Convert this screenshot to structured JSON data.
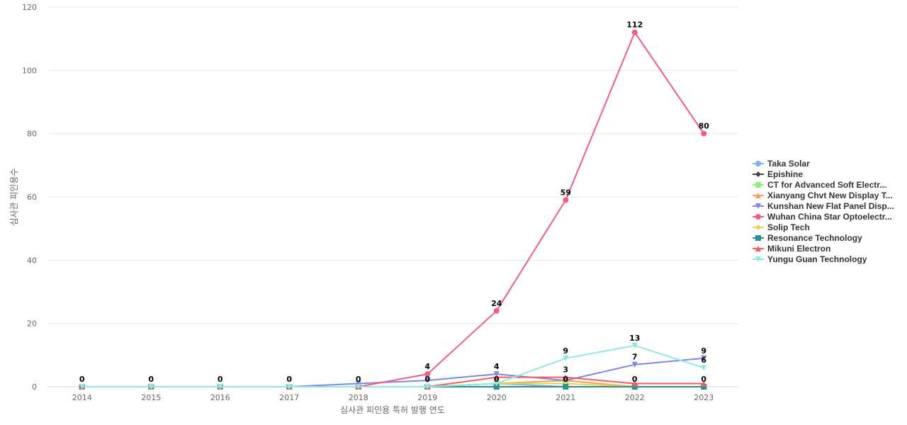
{
  "chart_data": {
    "type": "line",
    "title": "",
    "xlabel": "심사관 피인용 특허 발행 연도",
    "ylabel": "심사관 피인용수",
    "categories": [
      "2014",
      "2015",
      "2016",
      "2017",
      "2018",
      "2019",
      "2020",
      "2021",
      "2022",
      "2023"
    ],
    "ylim": [
      0,
      120
    ],
    "yticks": [
      0,
      20,
      40,
      60,
      80,
      100,
      120
    ],
    "grid": true,
    "legend_position": "right",
    "series": [
      {
        "name": "Taka Solar",
        "color": "#7cb5ec",
        "marker": "circle",
        "values": [
          0,
          0,
          0,
          0,
          0,
          0,
          1,
          0,
          0,
          0
        ],
        "labels": [
          null,
          null,
          null,
          null,
          null,
          null,
          null,
          null,
          null,
          null
        ]
      },
      {
        "name": "Epishine",
        "color": "#434348",
        "marker": "diamond",
        "values": [
          0,
          0,
          0,
          0,
          0,
          0,
          0,
          0,
          0,
          0
        ],
        "labels": [
          null,
          null,
          null,
          null,
          null,
          null,
          null,
          null,
          null,
          null
        ]
      },
      {
        "name": "CT for Advanced Soft Electr...",
        "color": "#90ed7d",
        "marker": "square",
        "values": [
          0,
          0,
          0,
          0,
          0,
          0,
          1,
          2,
          0,
          0
        ],
        "labels": [
          null,
          null,
          null,
          null,
          null,
          null,
          null,
          null,
          null,
          null
        ]
      },
      {
        "name": "Xianyang Chvt New Display T...",
        "color": "#f7a35c",
        "marker": "triangle",
        "values": [
          0,
          0,
          0,
          0,
          0,
          0,
          1,
          2,
          0,
          0
        ],
        "labels": [
          null,
          null,
          null,
          null,
          null,
          null,
          null,
          null,
          null,
          null
        ]
      },
      {
        "name": "Kunshan New Flat Panel Disp...",
        "color": "#8085e9",
        "marker": "triangle-down",
        "values": [
          0,
          0,
          0,
          0,
          1,
          2,
          4,
          2,
          7,
          9
        ],
        "labels": [
          null,
          null,
          null,
          null,
          null,
          null,
          4,
          null,
          7,
          9
        ]
      },
      {
        "name": "Wuhan China Star Optoelectr...",
        "color": "#f15c80",
        "marker": "circle",
        "values": [
          0,
          0,
          0,
          0,
          0,
          4,
          24,
          59,
          112,
          80
        ],
        "labels": [
          null,
          null,
          null,
          null,
          null,
          4,
          24,
          59,
          112,
          80
        ]
      },
      {
        "name": "Solip Tech",
        "color": "#e4d354",
        "marker": "diamond",
        "values": [
          0,
          0,
          0,
          0,
          0,
          0,
          1,
          1,
          0,
          0
        ],
        "labels": [
          null,
          null,
          null,
          null,
          null,
          null,
          null,
          null,
          null,
          null
        ]
      },
      {
        "name": "Resonance Technology",
        "color": "#2b908f",
        "marker": "square",
        "values": [
          0,
          0,
          0,
          0,
          0,
          0,
          0,
          0,
          0,
          0
        ],
        "labels": [
          0,
          0,
          0,
          0,
          0,
          0,
          0,
          0,
          0,
          0
        ]
      },
      {
        "name": "Mikuni Electron",
        "color": "#f45b5b",
        "marker": "triangle",
        "values": [
          0,
          0,
          0,
          0,
          0,
          0,
          3,
          3,
          1,
          1
        ],
        "labels": [
          null,
          null,
          null,
          null,
          null,
          null,
          null,
          3,
          null,
          null
        ]
      },
      {
        "name": "Yungu Guan Technology",
        "color": "#91e8e1",
        "marker": "triangle-down",
        "values": [
          0,
          0,
          0,
          0,
          0,
          0,
          1,
          9,
          13,
          6
        ],
        "labels": [
          null,
          null,
          null,
          null,
          null,
          null,
          null,
          9,
          13,
          6
        ]
      }
    ]
  }
}
